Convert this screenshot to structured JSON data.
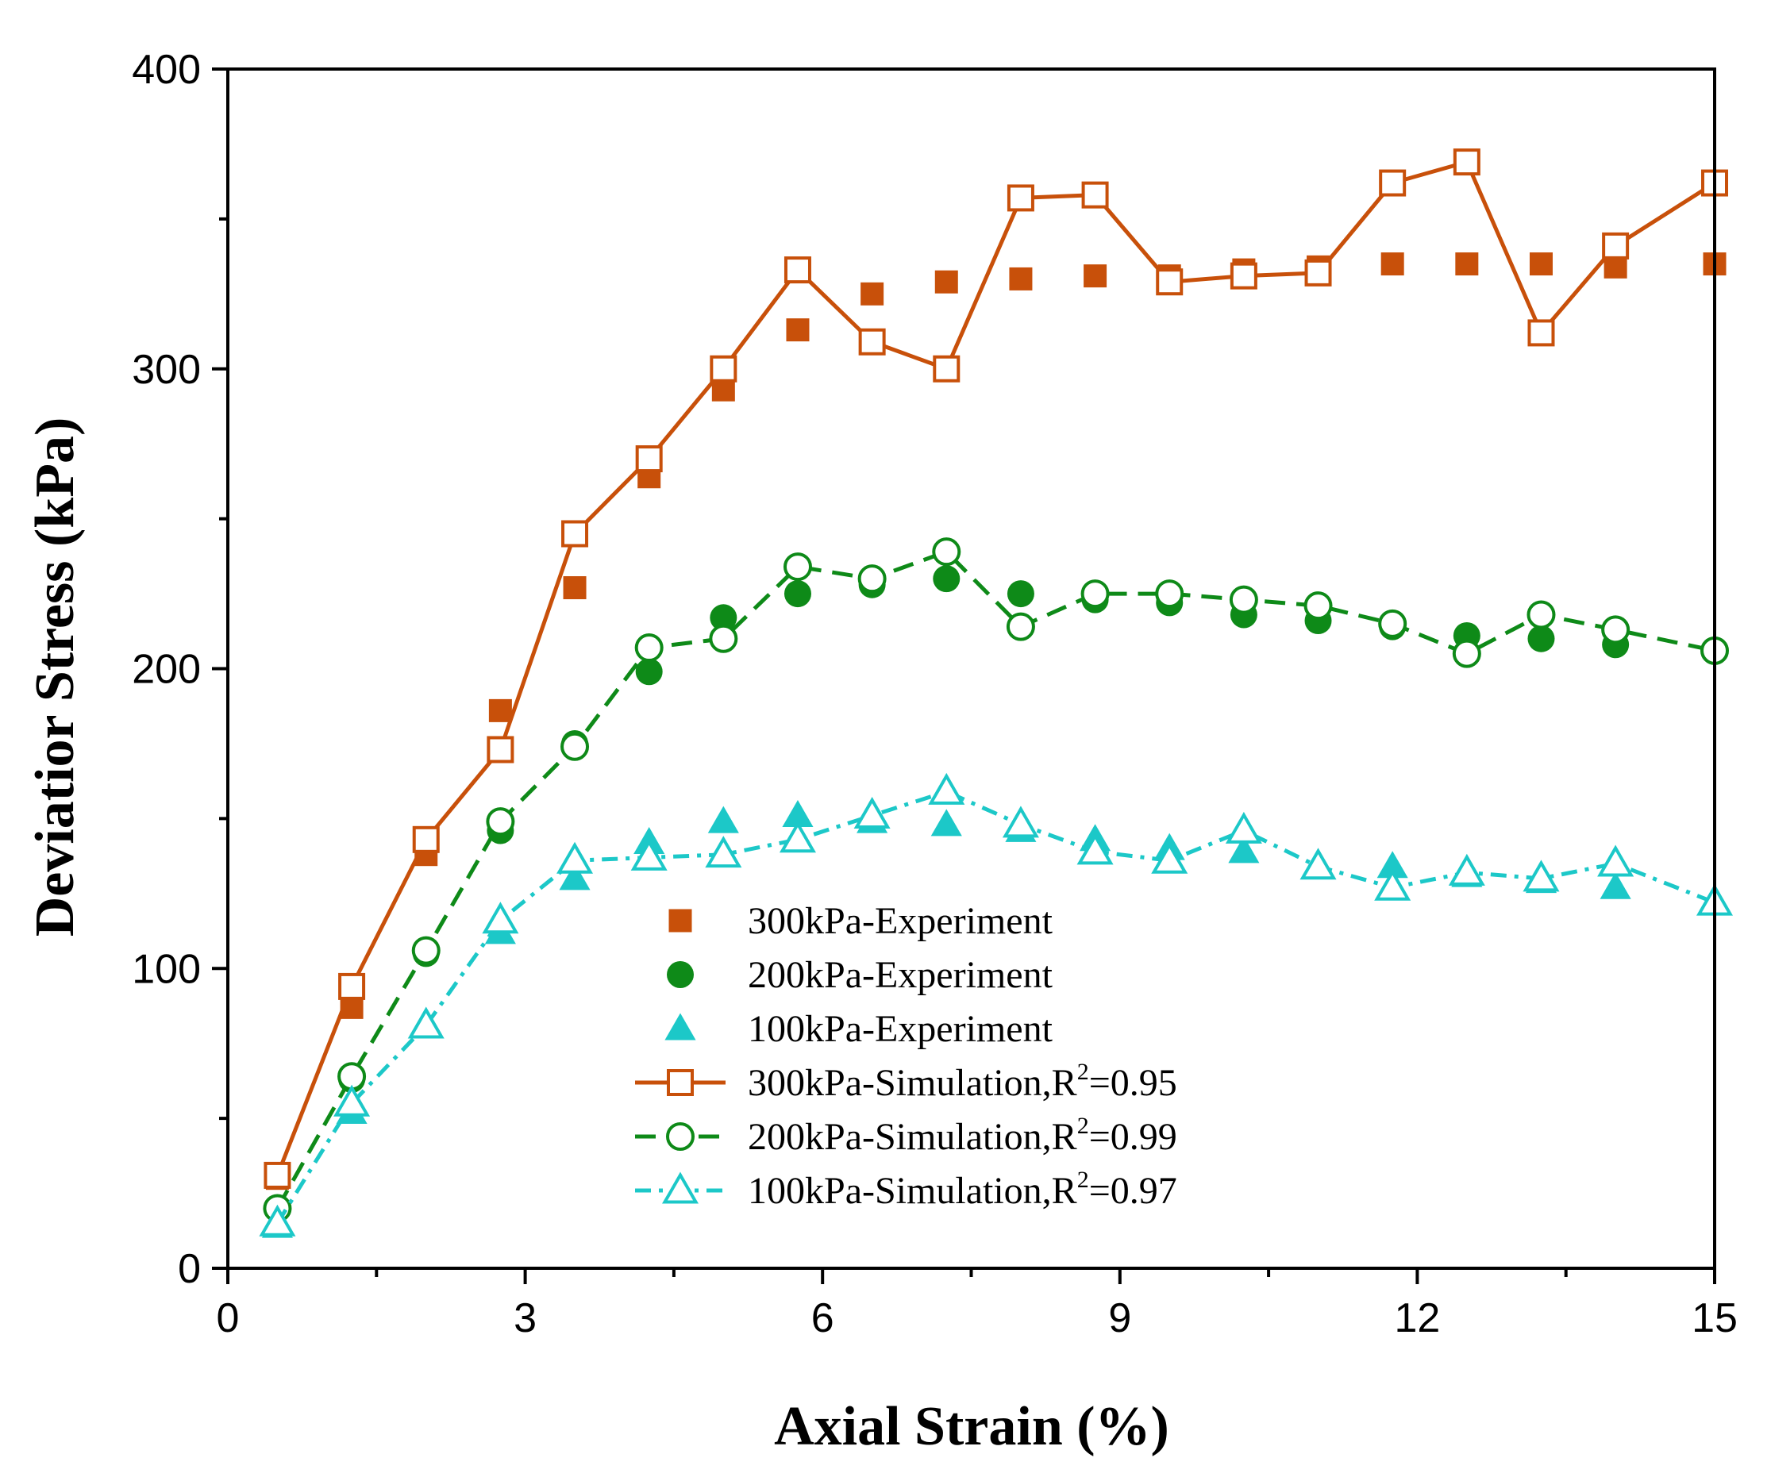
{
  "chart_data": {
    "type": "scatter",
    "title": "",
    "xlabel": "Axial Strain (%)",
    "ylabel": "Deviatior Stress (kPa)",
    "xlim": [
      0,
      15
    ],
    "ylim": [
      0,
      400
    ],
    "xticks": [
      "0",
      "3",
      "6",
      "9",
      "12",
      "15"
    ],
    "yticks": [
      "0",
      "100",
      "200",
      "300",
      "400"
    ],
    "x": [
      0.5,
      1.25,
      2.0,
      2.75,
      3.5,
      4.25,
      5.0,
      5.75,
      6.5,
      7.25,
      8.0,
      8.75,
      9.5,
      10.25,
      11.0,
      11.75,
      12.5,
      13.25,
      14.0,
      15.0
    ],
    "series": [
      {
        "name": "300kPa-Experiment",
        "kind": "experiment",
        "marker": "square-filled",
        "color": "#C8500A",
        "values": [
          30,
          87,
          138,
          186,
          227,
          264,
          293,
          313,
          325,
          329,
          330,
          331,
          331,
          333,
          334,
          335,
          335,
          335,
          334,
          335
        ]
      },
      {
        "name": "200kPa-Experiment",
        "kind": "experiment",
        "marker": "circle-filled",
        "color": "#0E8A18",
        "values": [
          20,
          63,
          105,
          146,
          175,
          199,
          217,
          225,
          228,
          230,
          225,
          223,
          222,
          218,
          216,
          214,
          211,
          210,
          208,
          206
        ]
      },
      {
        "name": "100kPa-Experiment",
        "kind": "experiment",
        "marker": "triangle-filled",
        "color": "#1CC8C8",
        "values": [
          14,
          52,
          82,
          112,
          130,
          142,
          149,
          151,
          149,
          148,
          146,
          143,
          140,
          139,
          134,
          134,
          131,
          129,
          127,
          123
        ]
      },
      {
        "name": "300kPa-Simulation,R",
        "r2": "2",
        "r2value": "=0.95",
        "kind": "simulation",
        "marker": "square-open",
        "line": "solid",
        "color": "#C8500A",
        "values": [
          31,
          94,
          143,
          173,
          245,
          270,
          300,
          333,
          309,
          300,
          357,
          358,
          329,
          331,
          332,
          362,
          369,
          312,
          341,
          362
        ]
      },
      {
        "name": "200kPa-Simulation,R",
        "r2": "2",
        "r2value": "=0.99",
        "kind": "simulation",
        "marker": "circle-open",
        "line": "dashed",
        "color": "#0E8A18",
        "values": [
          20,
          64,
          106,
          149,
          174,
          207,
          210,
          234,
          230,
          239,
          214,
          225,
          225,
          223,
          221,
          215,
          205,
          218,
          213,
          206
        ]
      },
      {
        "name": "100kPa-Simulation,R",
        "r2": "2",
        "r2value": "=0.97",
        "kind": "simulation",
        "marker": "triangle-open",
        "line": "dashdot",
        "color": "#1CC8C8",
        "values": [
          15,
          55,
          81,
          116,
          136,
          137,
          138,
          143,
          151,
          159,
          148,
          139,
          136,
          146,
          134,
          127,
          132,
          130,
          135,
          122
        ]
      }
    ],
    "legend": "bottom-center"
  }
}
